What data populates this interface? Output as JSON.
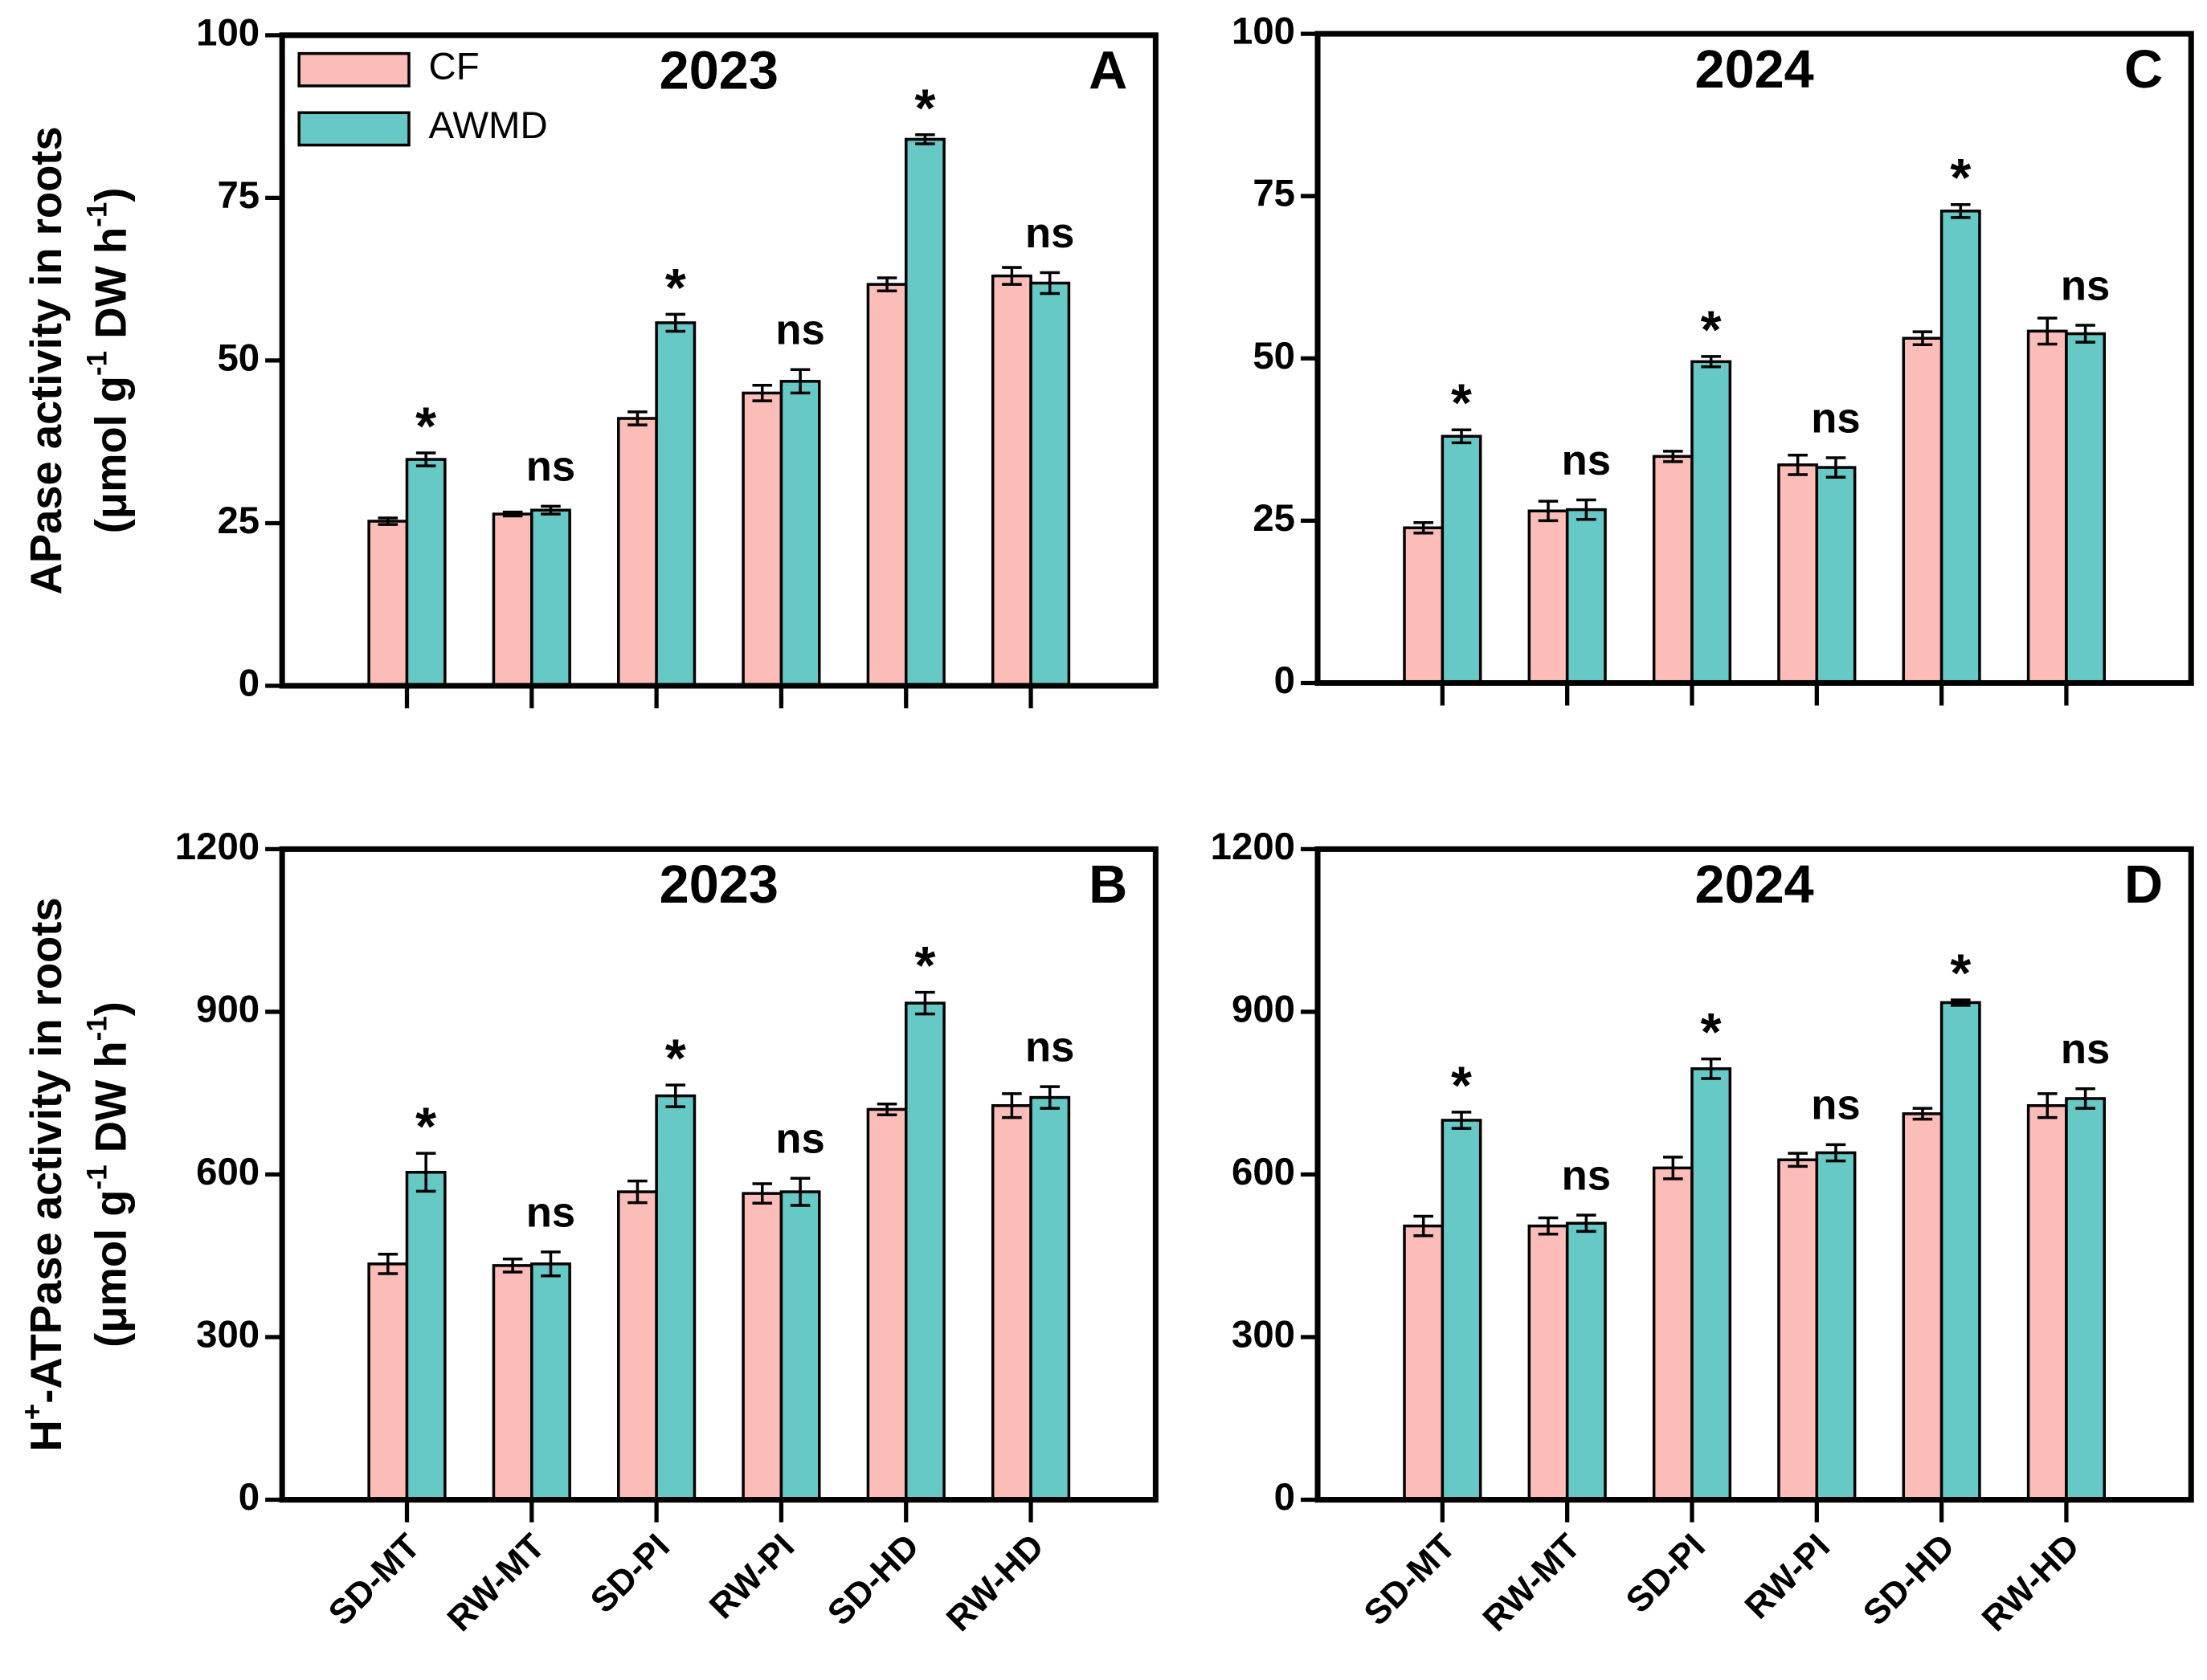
{
  "chart_data": [
    {
      "type": "bar",
      "panel": "A",
      "title": "2023",
      "legend": true,
      "ylabel": {
        "line1": [
          "APase activity in roots"
        ],
        "line2": [
          "(μmol g",
          "-1",
          " DW h",
          "-1",
          ")"
        ]
      },
      "ylim": [
        0,
        100
      ],
      "yticks": [
        0,
        25,
        50,
        75,
        100
      ],
      "series": [
        {
          "name": "CF",
          "color": "#fcbcb8",
          "values": [
            25.3,
            26.4,
            41.1,
            45.0,
            61.7,
            63.0
          ],
          "errors": [
            0.5,
            0.3,
            1.0,
            1.2,
            1.0,
            1.3
          ]
        },
        {
          "name": "AWMD",
          "color": "#66c9c5",
          "values": [
            34.8,
            27.0,
            55.8,
            46.8,
            84.0,
            61.9
          ],
          "errors": [
            1.0,
            0.6,
            1.3,
            1.8,
            0.7,
            1.6
          ]
        }
      ],
      "annotations": [
        "*",
        "ns",
        "*",
        "ns",
        "*",
        "ns"
      ]
    },
    {
      "type": "bar",
      "panel": "B",
      "title": "2023",
      "ylabel": {
        "line1": [
          "H",
          "+",
          "-ATPase activity in roots"
        ],
        "line2": [
          "(μmol g",
          "-1",
          " DW h",
          "-1",
          ")"
        ]
      },
      "categories": [
        "SD-MT",
        "RW-MT",
        "SD-PI",
        "RW-PI",
        "SD-HD",
        "RW-HD"
      ],
      "ylim": [
        0,
        1200
      ],
      "yticks": [
        0,
        300,
        600,
        900,
        1200
      ],
      "series": [
        {
          "color": "#fcbcb8",
          "values": [
            435,
            432,
            568,
            565,
            720,
            727
          ],
          "errors": [
            18,
            12,
            20,
            18,
            10,
            22
          ]
        },
        {
          "color": "#66c9c5",
          "values": [
            604,
            435,
            745,
            568,
            916,
            742
          ],
          "errors": [
            35,
            22,
            20,
            25,
            20,
            20
          ]
        }
      ],
      "annotations": [
        "*",
        "ns",
        "*",
        "ns",
        "*",
        "ns"
      ]
    },
    {
      "type": "bar",
      "panel": "C",
      "title": "2024",
      "ylim": [
        0,
        100
      ],
      "yticks": [
        0,
        25,
        50,
        75,
        100
      ],
      "series": [
        {
          "color": "#fcbcb8",
          "values": [
            23.9,
            26.5,
            34.9,
            33.6,
            53.1,
            54.2
          ],
          "errors": [
            0.8,
            1.5,
            0.8,
            1.5,
            1.0,
            2.0
          ]
        },
        {
          "color": "#66c9c5",
          "values": [
            38.0,
            26.7,
            49.5,
            33.2,
            72.7,
            53.8
          ],
          "errors": [
            1.0,
            1.5,
            0.8,
            1.5,
            1.0,
            1.3
          ]
        }
      ],
      "annotations": [
        "*",
        "ns",
        "*",
        "ns",
        "*",
        "ns"
      ]
    },
    {
      "type": "bar",
      "panel": "D",
      "title": "2024",
      "categories": [
        "SD-MT",
        "RW-MT",
        "SD-PI",
        "RW-PI",
        "SD-HD",
        "RW-HD"
      ],
      "ylim": [
        0,
        1200
      ],
      "yticks": [
        0,
        300,
        600,
        900,
        1200
      ],
      "series": [
        {
          "color": "#fcbcb8",
          "values": [
            505,
            505,
            612,
            627,
            712,
            727
          ],
          "errors": [
            18,
            15,
            20,
            12,
            10,
            22
          ]
        },
        {
          "color": "#66c9c5",
          "values": [
            700,
            510,
            795,
            640,
            917,
            740
          ],
          "errors": [
            15,
            15,
            18,
            15,
            5,
            18
          ]
        }
      ],
      "annotations": [
        "*",
        "ns",
        "*",
        "ns",
        "*",
        "ns"
      ]
    }
  ]
}
